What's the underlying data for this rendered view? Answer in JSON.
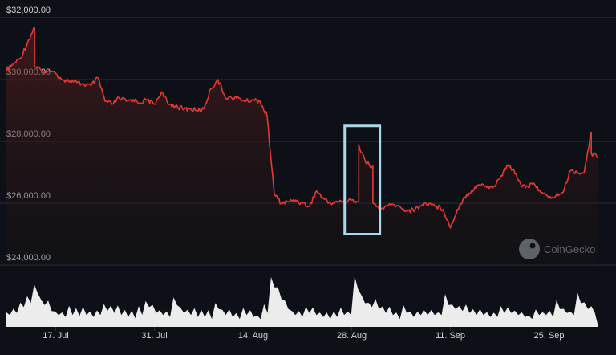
{
  "chart_data": {
    "type": "line",
    "title": "",
    "xlabel": "",
    "ylabel": "",
    "ylim": [
      24000,
      32000
    ],
    "grid": true,
    "y_ticks": [
      {
        "value": 32000,
        "label": "$32,000.00"
      },
      {
        "value": 30000,
        "label": "$30,000.00"
      },
      {
        "value": 28000,
        "label": "$28,000.00"
      },
      {
        "value": 26000,
        "label": "$26,000.00"
      },
      {
        "value": 24000,
        "label": "$24,000.00"
      }
    ],
    "x_range": [
      "2023-07-10",
      "2023-10-02"
    ],
    "x_ticks": [
      {
        "date": "2023-07-17",
        "label": "17. Jul"
      },
      {
        "date": "2023-07-31",
        "label": "31. Jul"
      },
      {
        "date": "2023-08-14",
        "label": "14. Aug"
      },
      {
        "date": "2023-08-28",
        "label": "28. Aug"
      },
      {
        "date": "2023-09-11",
        "label": "11. Sep"
      },
      {
        "date": "2023-09-25",
        "label": "25. Sep"
      }
    ],
    "series": [
      {
        "type": "line",
        "color": "#e53935",
        "points": [
          [
            "2023-07-10",
            30300
          ],
          [
            "2023-07-11",
            30500
          ],
          [
            "2023-07-12",
            30700
          ],
          [
            "2023-07-13",
            31200
          ],
          [
            "2023-07-14",
            31700
          ],
          [
            "2023-07-14",
            30400
          ],
          [
            "2023-07-15",
            30300
          ],
          [
            "2023-07-17",
            30200
          ],
          [
            "2023-07-18",
            30000
          ],
          [
            "2023-07-19",
            29950
          ],
          [
            "2023-07-20",
            29900
          ],
          [
            "2023-07-21",
            29850
          ],
          [
            "2023-07-22",
            29800
          ],
          [
            "2023-07-23",
            30050
          ],
          [
            "2023-07-24",
            29300
          ],
          [
            "2023-07-25",
            29200
          ],
          [
            "2023-07-26",
            29400
          ],
          [
            "2023-07-27",
            29300
          ],
          [
            "2023-07-28",
            29350
          ],
          [
            "2023-07-29",
            29250
          ],
          [
            "2023-07-30",
            29350
          ],
          [
            "2023-07-31",
            29200
          ],
          [
            "2023-08-01",
            29600
          ],
          [
            "2023-08-02",
            29200
          ],
          [
            "2023-08-03",
            29150
          ],
          [
            "2023-08-04",
            29050
          ],
          [
            "2023-08-05",
            29050
          ],
          [
            "2023-08-06",
            29000
          ],
          [
            "2023-08-07",
            29050
          ],
          [
            "2023-08-08",
            29700
          ],
          [
            "2023-08-09",
            30000
          ],
          [
            "2023-08-10",
            29450
          ],
          [
            "2023-08-11",
            29400
          ],
          [
            "2023-08-12",
            29400
          ],
          [
            "2023-08-13",
            29300
          ],
          [
            "2023-08-14",
            29350
          ],
          [
            "2023-08-15",
            29300
          ],
          [
            "2023-08-16",
            28800
          ],
          [
            "2023-08-17",
            26300
          ],
          [
            "2023-08-18",
            26000
          ],
          [
            "2023-08-19",
            26050
          ],
          [
            "2023-08-20",
            26100
          ],
          [
            "2023-08-21",
            26000
          ],
          [
            "2023-08-22",
            25900
          ],
          [
            "2023-08-23",
            26400
          ],
          [
            "2023-08-24",
            26150
          ],
          [
            "2023-08-25",
            26000
          ],
          [
            "2023-08-26",
            26050
          ],
          [
            "2023-08-27",
            26050
          ],
          [
            "2023-08-28",
            26100
          ],
          [
            "2023-08-29",
            26050
          ],
          [
            "2023-08-29",
            27900
          ],
          [
            "2023-08-30",
            27300
          ],
          [
            "2023-08-31",
            27200
          ],
          [
            "2023-08-31",
            26000
          ],
          [
            "2023-09-01",
            25800
          ],
          [
            "2023-09-02",
            25900
          ],
          [
            "2023-09-03",
            25950
          ],
          [
            "2023-09-04",
            25850
          ],
          [
            "2023-09-05",
            25750
          ],
          [
            "2023-09-06",
            25800
          ],
          [
            "2023-09-07",
            25950
          ],
          [
            "2023-09-08",
            26000
          ],
          [
            "2023-09-09",
            25900
          ],
          [
            "2023-09-10",
            25800
          ],
          [
            "2023-09-11",
            25200
          ],
          [
            "2023-09-12",
            25800
          ],
          [
            "2023-09-13",
            26200
          ],
          [
            "2023-09-14",
            26400
          ],
          [
            "2023-09-15",
            26600
          ],
          [
            "2023-09-16",
            26550
          ],
          [
            "2023-09-17",
            26500
          ],
          [
            "2023-09-18",
            26800
          ],
          [
            "2023-09-19",
            27200
          ],
          [
            "2023-09-20",
            27100
          ],
          [
            "2023-09-21",
            26600
          ],
          [
            "2023-09-22",
            26550
          ],
          [
            "2023-09-23",
            26600
          ],
          [
            "2023-09-24",
            26350
          ],
          [
            "2023-09-25",
            26150
          ],
          [
            "2023-09-26",
            26250
          ],
          [
            "2023-09-27",
            26350
          ],
          [
            "2023-09-28",
            27050
          ],
          [
            "2023-09-29",
            27000
          ],
          [
            "2023-09-30",
            27000
          ],
          [
            "2023-10-01",
            28300
          ],
          [
            "2023-10-01",
            27600
          ],
          [
            "2023-10-02",
            27500
          ]
        ]
      },
      {
        "type": "volume-bars",
        "color": "#ffffff",
        "values": [
          0.3,
          0.35,
          0.5,
          0.6,
          0.85,
          0.55,
          0.4,
          0.3,
          0.25,
          0.3,
          0.28,
          0.3,
          0.25,
          0.3,
          0.4,
          0.35,
          0.3,
          0.25,
          0.22,
          0.3,
          0.5,
          0.35,
          0.3,
          0.25,
          0.55,
          0.35,
          0.3,
          0.25,
          0.25,
          0.2,
          0.45,
          0.3,
          0.25,
          0.2,
          0.3,
          0.25,
          0.2,
          0.35,
          1.0,
          0.7,
          0.45,
          0.3,
          0.25,
          0.35,
          0.3,
          0.25,
          0.2,
          0.25,
          0.3,
          0.3,
          0.95,
          0.6,
          0.5,
          0.45,
          0.35,
          0.3,
          0.2,
          0.35,
          0.25,
          0.3,
          0.3,
          0.3,
          0.3,
          0.55,
          0.45,
          0.4,
          0.35,
          0.3,
          0.3,
          0.25,
          0.25,
          0.35,
          0.35,
          0.3,
          0.25,
          0.2,
          0.3,
          0.3,
          0.25,
          0.45,
          0.35,
          0.3,
          0.6,
          0.45,
          0.35
        ]
      }
    ],
    "highlight_box": {
      "x_from": "2023-08-27",
      "x_to": "2023-09-01",
      "y_from": 25000,
      "y_to": 26050,
      "y_top": 28500,
      "color": "#a9d8ea"
    },
    "colors": {
      "background": "#0d1117",
      "line": "#e53935",
      "grid": "#2a2f36",
      "tick_text": "#cfd3d8",
      "highlight": "#a9d8ea",
      "watermark": "#5e6368"
    },
    "watermark": {
      "text": "CoinGecko",
      "icon": "gecko-logo"
    }
  }
}
